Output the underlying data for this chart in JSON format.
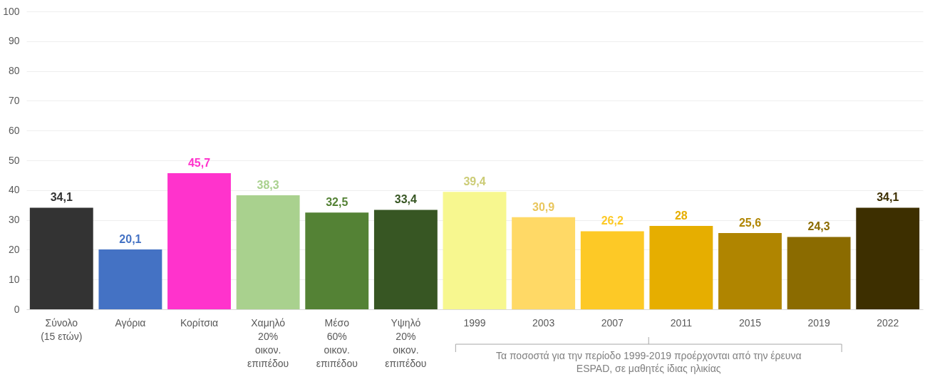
{
  "chart_data": {
    "type": "bar",
    "categories": [
      "Σύνολο\n(15 ετών)",
      "Αγόρια",
      "Κορίτσια",
      "Χαμηλό\n20%\nοικον.\nεπιπέδου",
      "Μέσο\n60%\nοικον.\nεπιπέδου",
      "Υψηλό\n20%\nοικον.\nεπιπέδου",
      "1999",
      "2003",
      "2007",
      "2011",
      "2015",
      "2019",
      "2022"
    ],
    "values": [
      34.1,
      20.1,
      45.7,
      38.3,
      32.5,
      33.4,
      39.4,
      30.9,
      26.2,
      28,
      25.6,
      24.3,
      34.1
    ],
    "colors": [
      "#333333",
      "#4472c4",
      "#ff33cc",
      "#a9d18e",
      "#548235",
      "#375623",
      "#f7f78f",
      "#ffd966",
      "#fdc926",
      "#e6ae00",
      "#b08500",
      "#8b6b00",
      "#3d2f00"
    ],
    "value_labels": [
      "34,1",
      "20,1",
      "45,7",
      "38,3",
      "32,5",
      "33,4",
      "39,4",
      "30,9",
      "26,2",
      "28",
      "25,6",
      "24,3",
      "34,1"
    ],
    "ylim": [
      0,
      100
    ],
    "yticks": [
      0,
      10,
      20,
      30,
      40,
      50,
      60,
      70,
      80,
      90,
      100
    ],
    "grid": "y",
    "annotations": [
      "Τα ποσοστά για την περίοδο 1999-2019 προέρχονται από την έρευνα ESPAD, σε μαθητές ίδιας ηλικίας"
    ]
  }
}
